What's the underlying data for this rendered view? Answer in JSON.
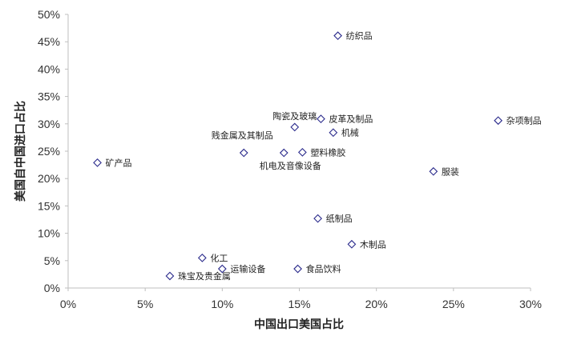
{
  "chart_data": {
    "type": "scatter",
    "xlabel": "中国出口美国占比",
    "ylabel": "美国自中国进口占比",
    "xlim": [
      0,
      0.3
    ],
    "ylim": [
      0,
      0.5
    ],
    "xticks": [
      "0%",
      "5%",
      "10%",
      "15%",
      "20%",
      "25%",
      "30%"
    ],
    "yticks": [
      "0%",
      "5%",
      "10%",
      "15%",
      "20%",
      "25%",
      "30%",
      "35%",
      "40%",
      "45%",
      "50%"
    ],
    "marker_color": "#2b2b8c",
    "grid": false,
    "points": [
      {
        "label": "纺织品",
        "x": 0.175,
        "y": 0.461
      },
      {
        "label": "陶瓷及玻璃",
        "x": 0.147,
        "y": 0.294
      },
      {
        "label": "皮革及制品",
        "x": 0.164,
        "y": 0.309
      },
      {
        "label": "机械",
        "x": 0.172,
        "y": 0.284
      },
      {
        "label": "杂项制品",
        "x": 0.279,
        "y": 0.306
      },
      {
        "label": "贱金属及其制品",
        "x": 0.114,
        "y": 0.247
      },
      {
        "label": "机电及音像设备",
        "x": 0.14,
        "y": 0.247
      },
      {
        "label": "塑料橡胶",
        "x": 0.152,
        "y": 0.248
      },
      {
        "label": "矿产品",
        "x": 0.019,
        "y": 0.229
      },
      {
        "label": "服装",
        "x": 0.237,
        "y": 0.213
      },
      {
        "label": "纸制品",
        "x": 0.162,
        "y": 0.127
      },
      {
        "label": "木制品",
        "x": 0.184,
        "y": 0.08
      },
      {
        "label": "化工",
        "x": 0.087,
        "y": 0.055
      },
      {
        "label": "运输设备",
        "x": 0.1,
        "y": 0.035
      },
      {
        "label": "食品饮料",
        "x": 0.149,
        "y": 0.035
      },
      {
        "label": "珠宝及贵金属",
        "x": 0.066,
        "y": 0.022
      }
    ]
  }
}
